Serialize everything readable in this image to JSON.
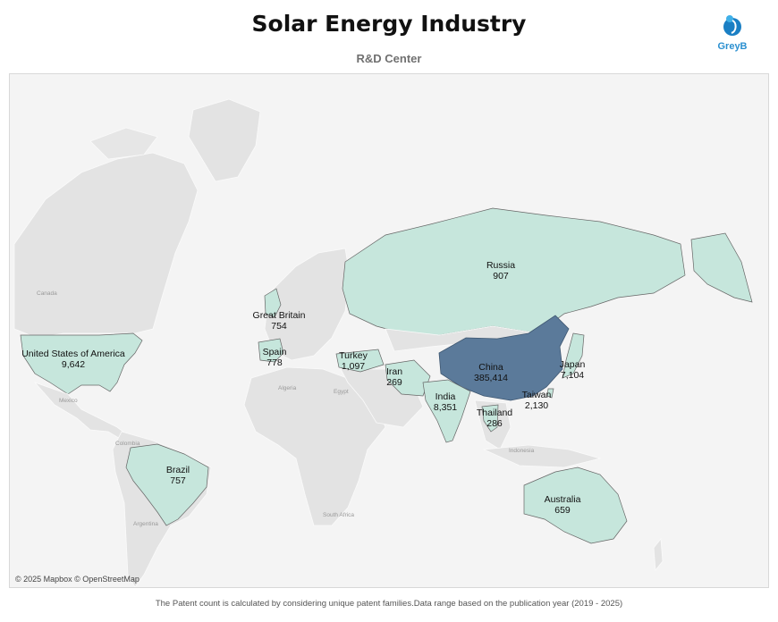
{
  "header": {
    "title": "Solar Energy Industry",
    "subtitle": "R&D Center"
  },
  "logo": {
    "text": "GreyB"
  },
  "map": {
    "attribution": "© 2025 Mapbox © OpenStreetMap",
    "highlight_color": "#c6e6dc",
    "top_color": "#5b7a9a",
    "base_labels": [
      "Canada",
      "Mexico",
      "Colombia",
      "Argentina",
      "Algeria",
      "Egypt",
      "South Africa",
      "Indonesia"
    ],
    "countries": [
      {
        "name": "United States of America",
        "value": "9,642"
      },
      {
        "name": "Great Britain",
        "value": "754"
      },
      {
        "name": "Spain",
        "value": "778"
      },
      {
        "name": "Turkey",
        "value": "1,097"
      },
      {
        "name": "Iran",
        "value": "269"
      },
      {
        "name": "Russia",
        "value": "907"
      },
      {
        "name": "China",
        "value": "385,414"
      },
      {
        "name": "Japan",
        "value": "7,104"
      },
      {
        "name": "India",
        "value": "8,351"
      },
      {
        "name": "Taiwan",
        "value": "2,130"
      },
      {
        "name": "Thailand",
        "value": "286"
      },
      {
        "name": "Brazil",
        "value": "757"
      },
      {
        "name": "Australia",
        "value": "659"
      }
    ]
  },
  "footer": {
    "note": "The Patent count is calculated by considering unique patent families.Data range based on the publication year (2019 - 2025)"
  }
}
